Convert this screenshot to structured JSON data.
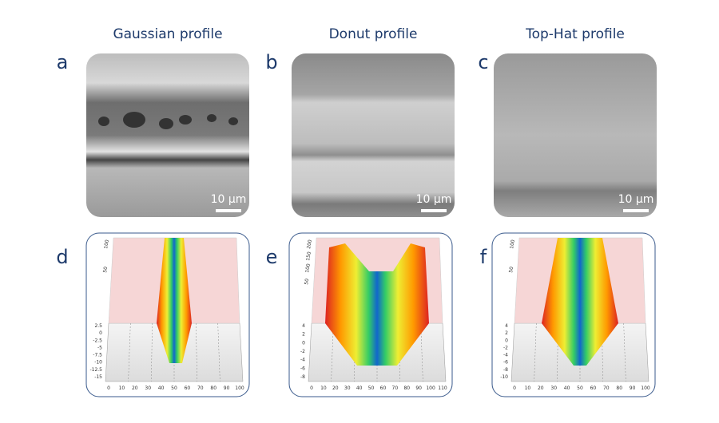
{
  "columns": [
    {
      "title": "Gaussian profile",
      "sem": {
        "letter": "a",
        "scale_bar": "10 µm"
      },
      "profile": {
        "letter": "d",
        "z_ticks": [
          2.5,
          0,
          -2.5,
          -5,
          -7.5,
          -10,
          -12.5,
          -15
        ],
        "y_ticks": [
          100,
          50
        ],
        "x_ticks": [
          0,
          10,
          20,
          30,
          40,
          50,
          60,
          70,
          80,
          90,
          100
        ]
      }
    },
    {
      "title": "Donut profile",
      "sem": {
        "letter": "b",
        "scale_bar": "10 µm"
      },
      "profile": {
        "letter": "e",
        "z_ticks": [
          4,
          2,
          0,
          -2,
          -4,
          -6,
          -8
        ],
        "y_ticks": [
          200,
          150,
          100,
          50
        ],
        "x_ticks": [
          0,
          10,
          20,
          30,
          40,
          50,
          60,
          70,
          80,
          90,
          100,
          110
        ]
      }
    },
    {
      "title": "Top-Hat profile",
      "sem": {
        "letter": "c",
        "scale_bar": "10 µm"
      },
      "profile": {
        "letter": "f",
        "z_ticks": [
          4,
          2,
          0,
          -2,
          -4,
          -6,
          -8,
          -10
        ],
        "y_ticks": [
          100,
          50
        ],
        "x_ticks": [
          0,
          10,
          20,
          30,
          40,
          50,
          60,
          70,
          80,
          90,
          100
        ]
      }
    }
  ]
}
